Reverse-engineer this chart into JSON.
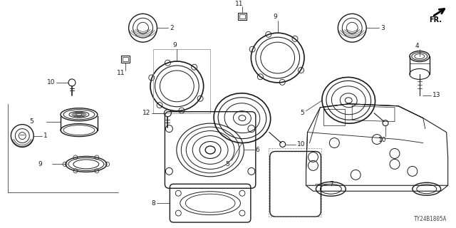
{
  "bg_color": "#ffffff",
  "line_color": "#1a1a1a",
  "fig_width": 6.4,
  "fig_height": 3.2,
  "dpi": 100,
  "diagram_code": "TY24B1805A"
}
